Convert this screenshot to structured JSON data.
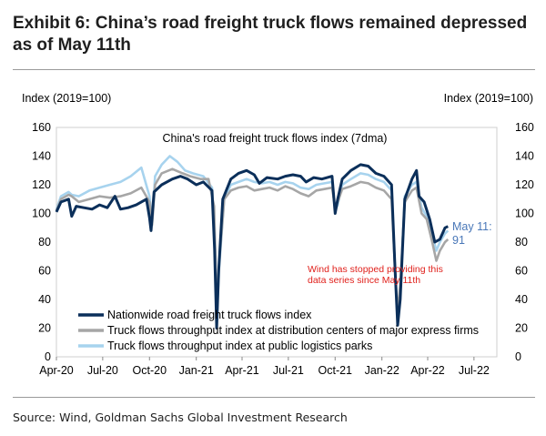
{
  "exhibit_title": "Exhibit 6: China’s road freight truck flows remained depressed as of May 11th",
  "source": "Source: Wind, Goldman Sachs Global Investment Research",
  "chart_data": {
    "type": "line",
    "title": "China's road freight truck flows index (7dma)",
    "ylabel_left": "Index (2019=100)",
    "ylabel_right": "Index (2019=100)",
    "ylim": [
      0,
      160
    ],
    "y_ticks": [
      0,
      20,
      40,
      60,
      80,
      100,
      120,
      140,
      160
    ],
    "x_ticks": [
      "Apr-20",
      "Jul-20",
      "Oct-20",
      "Jan-21",
      "Apr-21",
      "Jul-21",
      "Oct-21",
      "Jan-22",
      "Apr-22",
      "Jul-22"
    ],
    "xlim": [
      "2020-04-01",
      "2022-08-15"
    ],
    "legend_position": "bottom-left",
    "annotations": {
      "last_value": "May 11:\n91",
      "note": "Wind has stopped providing this\ndata series since May 11th"
    },
    "colors": {
      "nationwide": "#0b2f5a",
      "express": "#a6a6a6",
      "parks": "#a7d3ee",
      "note": "#e0201b",
      "label": "#4a78b8"
    },
    "series": [
      {
        "name": "Nationwide road freight truck flows index",
        "points": [
          [
            "2020-04-01",
            101
          ],
          [
            "2020-04-10",
            108
          ],
          [
            "2020-04-25",
            110
          ],
          [
            "2020-05-01",
            98
          ],
          [
            "2020-05-10",
            105
          ],
          [
            "2020-05-25",
            104
          ],
          [
            "2020-06-10",
            103
          ],
          [
            "2020-06-25",
            106
          ],
          [
            "2020-07-10",
            104
          ],
          [
            "2020-07-25",
            112
          ],
          [
            "2020-08-05",
            103
          ],
          [
            "2020-08-20",
            104
          ],
          [
            "2020-09-05",
            106
          ],
          [
            "2020-09-25",
            110
          ],
          [
            "2020-10-01",
            97
          ],
          [
            "2020-10-04",
            88
          ],
          [
            "2020-10-10",
            115
          ],
          [
            "2020-10-25",
            120
          ],
          [
            "2020-11-15",
            124
          ],
          [
            "2020-12-01",
            126
          ],
          [
            "2020-12-15",
            124
          ],
          [
            "2021-01-01",
            120
          ],
          [
            "2021-01-15",
            122
          ],
          [
            "2021-02-01",
            116
          ],
          [
            "2021-02-06",
            75
          ],
          [
            "2021-02-10",
            20
          ],
          [
            "2021-02-14",
            60
          ],
          [
            "2021-02-22",
            110
          ],
          [
            "2021-03-10",
            124
          ],
          [
            "2021-03-25",
            128
          ],
          [
            "2021-04-10",
            130
          ],
          [
            "2021-04-25",
            127
          ],
          [
            "2021-05-05",
            121
          ],
          [
            "2021-05-20",
            125
          ],
          [
            "2021-06-10",
            124
          ],
          [
            "2021-06-25",
            126
          ],
          [
            "2021-07-10",
            127
          ],
          [
            "2021-07-25",
            126
          ],
          [
            "2021-08-05",
            122
          ],
          [
            "2021-08-20",
            125
          ],
          [
            "2021-09-05",
            124
          ],
          [
            "2021-09-25",
            126
          ],
          [
            "2021-10-01",
            100
          ],
          [
            "2021-10-06",
            110
          ],
          [
            "2021-10-15",
            124
          ],
          [
            "2021-11-01",
            130
          ],
          [
            "2021-11-20",
            134
          ],
          [
            "2021-12-05",
            133
          ],
          [
            "2021-12-20",
            128
          ],
          [
            "2022-01-05",
            126
          ],
          [
            "2022-01-20",
            120
          ],
          [
            "2022-01-27",
            60
          ],
          [
            "2022-02-01",
            22
          ],
          [
            "2022-02-06",
            40
          ],
          [
            "2022-02-15",
            110
          ],
          [
            "2022-03-01",
            124
          ],
          [
            "2022-03-10",
            130
          ],
          [
            "2022-03-15",
            112
          ],
          [
            "2022-03-25",
            108
          ],
          [
            "2022-04-05",
            96
          ],
          [
            "2022-04-15",
            80
          ],
          [
            "2022-04-25",
            82
          ],
          [
            "2022-05-05",
            90
          ],
          [
            "2022-05-11",
            91
          ]
        ]
      },
      {
        "name": "Truck flows throughput index at distribution centers of major express firms",
        "points": [
          [
            "2020-04-01",
            102
          ],
          [
            "2020-04-10",
            110
          ],
          [
            "2020-04-25",
            113
          ],
          [
            "2020-05-01",
            112
          ],
          [
            "2020-05-15",
            108
          ],
          [
            "2020-06-05",
            110
          ],
          [
            "2020-06-25",
            112
          ],
          [
            "2020-07-15",
            111
          ],
          [
            "2020-08-05",
            112
          ],
          [
            "2020-08-25",
            114
          ],
          [
            "2020-09-15",
            118
          ],
          [
            "2020-10-01",
            108
          ],
          [
            "2020-10-06",
            92
          ],
          [
            "2020-10-12",
            120
          ],
          [
            "2020-10-25",
            128
          ],
          [
            "2020-11-15",
            131
          ],
          [
            "2020-12-05",
            128
          ],
          [
            "2020-12-20",
            126
          ],
          [
            "2021-01-10",
            124
          ],
          [
            "2021-01-25",
            124
          ],
          [
            "2021-02-05",
            105
          ],
          [
            "2021-02-10",
            35
          ],
          [
            "2021-02-15",
            65
          ],
          [
            "2021-02-25",
            110
          ],
          [
            "2021-03-10",
            116
          ],
          [
            "2021-03-25",
            118
          ],
          [
            "2021-04-10",
            119
          ],
          [
            "2021-04-25",
            116
          ],
          [
            "2021-05-10",
            117
          ],
          [
            "2021-05-25",
            118
          ],
          [
            "2021-06-10",
            116
          ],
          [
            "2021-06-25",
            119
          ],
          [
            "2021-07-10",
            117
          ],
          [
            "2021-07-25",
            114
          ],
          [
            "2021-08-10",
            112
          ],
          [
            "2021-08-25",
            116
          ],
          [
            "2021-09-10",
            117
          ],
          [
            "2021-09-25",
            118
          ],
          [
            "2021-10-01",
            104
          ],
          [
            "2021-10-06",
            108
          ],
          [
            "2021-10-15",
            117
          ],
          [
            "2021-11-01",
            119
          ],
          [
            "2021-11-20",
            122
          ],
          [
            "2021-12-05",
            121
          ],
          [
            "2021-12-20",
            118
          ],
          [
            "2022-01-05",
            116
          ],
          [
            "2022-01-20",
            110
          ],
          [
            "2022-01-27",
            60
          ],
          [
            "2022-02-01",
            30
          ],
          [
            "2022-02-06",
            50
          ],
          [
            "2022-02-15",
            108
          ],
          [
            "2022-03-01",
            116
          ],
          [
            "2022-03-10",
            118
          ],
          [
            "2022-03-20",
            100
          ],
          [
            "2022-03-30",
            96
          ],
          [
            "2022-04-10",
            80
          ],
          [
            "2022-04-18",
            67
          ],
          [
            "2022-04-25",
            74
          ],
          [
            "2022-05-05",
            80
          ],
          [
            "2022-05-11",
            82
          ]
        ]
      },
      {
        "name": "Truck flows throughput index at public logistics parks",
        "points": [
          [
            "2020-04-01",
            103
          ],
          [
            "2020-04-10",
            112
          ],
          [
            "2020-04-25",
            115
          ],
          [
            "2020-05-01",
            113
          ],
          [
            "2020-05-15",
            112
          ],
          [
            "2020-06-05",
            116
          ],
          [
            "2020-06-25",
            118
          ],
          [
            "2020-07-15",
            120
          ],
          [
            "2020-08-05",
            122
          ],
          [
            "2020-08-25",
            126
          ],
          [
            "2020-09-15",
            132
          ],
          [
            "2020-10-01",
            112
          ],
          [
            "2020-10-06",
            92
          ],
          [
            "2020-10-12",
            126
          ],
          [
            "2020-10-25",
            134
          ],
          [
            "2020-11-10",
            140
          ],
          [
            "2020-11-25",
            136
          ],
          [
            "2020-12-10",
            130
          ],
          [
            "2020-12-25",
            128
          ],
          [
            "2021-01-15",
            126
          ],
          [
            "2021-02-01",
            118
          ],
          [
            "2021-02-06",
            80
          ],
          [
            "2021-02-10",
            25
          ],
          [
            "2021-02-15",
            62
          ],
          [
            "2021-02-25",
            110
          ],
          [
            "2021-03-10",
            120
          ],
          [
            "2021-03-25",
            122
          ],
          [
            "2021-04-10",
            124
          ],
          [
            "2021-04-25",
            122
          ],
          [
            "2021-05-10",
            121
          ],
          [
            "2021-05-25",
            122
          ],
          [
            "2021-06-10",
            120
          ],
          [
            "2021-06-25",
            122
          ],
          [
            "2021-07-10",
            121
          ],
          [
            "2021-07-25",
            118
          ],
          [
            "2021-08-10",
            117
          ],
          [
            "2021-08-25",
            120
          ],
          [
            "2021-09-10",
            121
          ],
          [
            "2021-09-25",
            122
          ],
          [
            "2021-10-01",
            102
          ],
          [
            "2021-10-06",
            106
          ],
          [
            "2021-10-15",
            120
          ],
          [
            "2021-11-01",
            124
          ],
          [
            "2021-11-20",
            128
          ],
          [
            "2021-12-05",
            127
          ],
          [
            "2021-12-20",
            124
          ],
          [
            "2022-01-05",
            122
          ],
          [
            "2022-01-20",
            116
          ],
          [
            "2022-01-27",
            60
          ],
          [
            "2022-02-01",
            24
          ],
          [
            "2022-02-06",
            45
          ],
          [
            "2022-02-15",
            112
          ],
          [
            "2022-03-01",
            120
          ],
          [
            "2022-03-10",
            122
          ],
          [
            "2022-03-20",
            104
          ],
          [
            "2022-03-30",
            98
          ],
          [
            "2022-04-10",
            85
          ],
          [
            "2022-04-18",
            74
          ],
          [
            "2022-04-25",
            80
          ],
          [
            "2022-05-05",
            86
          ],
          [
            "2022-05-11",
            88
          ]
        ]
      }
    ]
  }
}
